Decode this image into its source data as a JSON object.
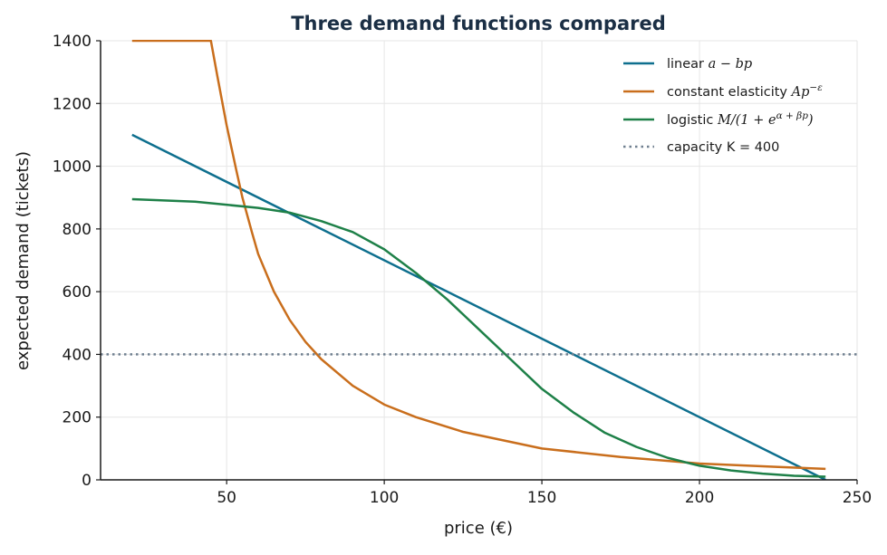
{
  "chart_data": {
    "type": "line",
    "title": "Three demand functions compared",
    "xlabel": "price (€)",
    "ylabel": "expected demand (tickets)",
    "xlim": [
      10,
      250
    ],
    "ylim": [
      0,
      1400
    ],
    "x_ticks": [
      50,
      100,
      150,
      200,
      250
    ],
    "y_ticks": [
      0,
      200,
      400,
      600,
      800,
      1000,
      1200,
      1400
    ],
    "grid": true,
    "legend_position": "top-right",
    "series": [
      {
        "name": "linear a − bp",
        "legend_prefix": "linear ",
        "legend_math": "a − bp",
        "color": "#0e6f8e",
        "style": "solid",
        "x": [
          20,
          240
        ],
        "y": [
          1100,
          0
        ]
      },
      {
        "name": "constant elasticity Ap^−ε",
        "legend_prefix": "constant elasticity ",
        "legend_math": "Ap",
        "legend_sup": "−ε",
        "color": "#c96e1c",
        "style": "solid",
        "x": [
          20,
          45,
          47,
          50,
          53,
          55,
          58,
          60,
          65,
          70,
          75,
          80,
          90,
          100,
          110,
          125,
          150,
          175,
          200,
          225,
          240
        ],
        "y": [
          1400,
          1400,
          1290,
          1130,
          990,
          900,
          790,
          720,
          600,
          510,
          440,
          385,
          300,
          240,
          200,
          153,
          100,
          73,
          52,
          41,
          35
        ]
      },
      {
        "name": "logistic M/(1 + e^(α+βp))",
        "legend_prefix": "logistic ",
        "legend_math": "M/(1 + e",
        "legend_sup": "α + βp",
        "legend_suffix": ")",
        "color": "#1e8048",
        "style": "solid",
        "x": [
          20,
          40,
          60,
          70,
          80,
          90,
          100,
          110,
          120,
          130,
          140,
          150,
          160,
          170,
          180,
          190,
          200,
          210,
          220,
          230,
          240
        ],
        "y": [
          895,
          887,
          867,
          852,
          825,
          790,
          735,
          660,
          575,
          480,
          385,
          290,
          215,
          150,
          105,
          70,
          45,
          30,
          20,
          13,
          10
        ]
      },
      {
        "name": "capacity K = 400",
        "color": "#708090",
        "style": "dotted",
        "x": [
          10,
          250
        ],
        "y": [
          400,
          400
        ]
      }
    ]
  }
}
